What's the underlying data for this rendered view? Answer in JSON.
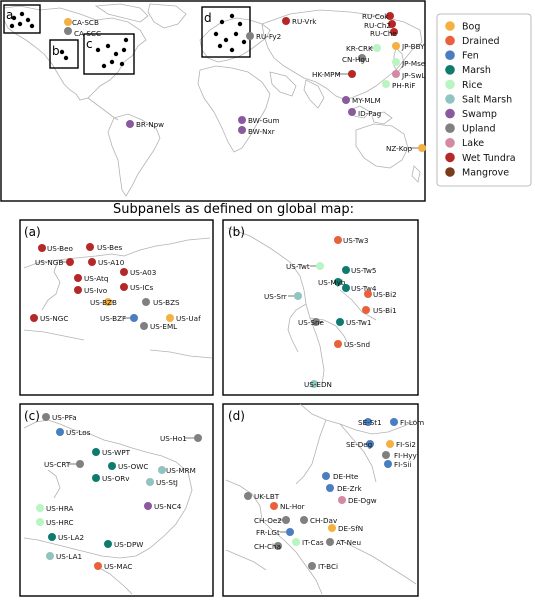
{
  "subtitle": "Subpanels as defined on global map:",
  "legend": [
    {
      "name": "Bog",
      "color": "#f5b041"
    },
    {
      "name": "Drained",
      "color": "#e8613c"
    },
    {
      "name": "Fen",
      "color": "#4a7ec0"
    },
    {
      "name": "Marsh",
      "color": "#0f7b6f"
    },
    {
      "name": "Rice",
      "color": "#b8f5c0"
    },
    {
      "name": "Salt Marsh",
      "color": "#8fc4c0"
    },
    {
      "name": "Swamp",
      "color": "#8a5a9e"
    },
    {
      "name": "Upland",
      "color": "#808080"
    },
    {
      "name": "Lake",
      "color": "#d48aa0"
    },
    {
      "name": "Wet Tundra",
      "color": "#b52828"
    },
    {
      "name": "Mangrove",
      "color": "#7a3b1b"
    }
  ],
  "global_boxes": [
    {
      "label": "a"
    },
    {
      "label": "b"
    },
    {
      "label": "c"
    },
    {
      "label": "d"
    }
  ],
  "global_sites": [
    {
      "label": "CA-SCB",
      "type": "Bog"
    },
    {
      "label": "CA-SCC",
      "type": "Upland"
    },
    {
      "label": "RU-Vrk",
      "type": "Wet Tundra"
    },
    {
      "label": "RU-Fy2",
      "type": "Upland"
    },
    {
      "label": "RU-Cok",
      "type": "Wet Tundra"
    },
    {
      "label": "RU-Ch2",
      "type": "Wet Tundra"
    },
    {
      "label": "RU-Che",
      "type": "Wet Tundra"
    },
    {
      "label": "KR-CRK",
      "type": "Rice"
    },
    {
      "label": "JP-BBY",
      "type": "Bog"
    },
    {
      "label": "CN-Hgu",
      "type": "Upland"
    },
    {
      "label": "JP-Mse",
      "type": "Rice"
    },
    {
      "label": "HK-MPM",
      "type": "Wet Tundra"
    },
    {
      "label": "JP-SwL",
      "type": "Lake"
    },
    {
      "label": "PH-RiF",
      "type": "Rice"
    },
    {
      "label": "MY-MLM",
      "type": "Swamp"
    },
    {
      "label": "ID-Pag",
      "type": "Swamp"
    },
    {
      "label": "BR-Npw",
      "type": "Swamp"
    },
    {
      "label": "BW-Gum",
      "type": "Swamp"
    },
    {
      "label": "BW-Nxr",
      "type": "Swamp"
    },
    {
      "label": "NZ-Kop",
      "type": "Bog"
    }
  ],
  "panels": [
    {
      "label": "(a)",
      "sites": [
        {
          "label": "US-Beo",
          "type": "Wet Tundra"
        },
        {
          "label": "US-Bes",
          "type": "Wet Tundra"
        },
        {
          "label": "US-NGB",
          "type": "Wet Tundra"
        },
        {
          "label": "US-A10",
          "type": "Wet Tundra"
        },
        {
          "label": "US-Atq",
          "type": "Wet Tundra"
        },
        {
          "label": "US-A03",
          "type": "Wet Tundra"
        },
        {
          "label": "US-Ivo",
          "type": "Wet Tundra"
        },
        {
          "label": "US-ICs",
          "type": "Wet Tundra"
        },
        {
          "label": "US-BZB",
          "type": "Bog"
        },
        {
          "label": "US-BZS",
          "type": "Upland"
        },
        {
          "label": "US-NGC",
          "type": "Wet Tundra"
        },
        {
          "label": "US-BZF",
          "type": "Fen"
        },
        {
          "label": "US-Uaf",
          "type": "Bog"
        },
        {
          "label": "US-EML",
          "type": "Upland"
        }
      ]
    },
    {
      "label": "(b)",
      "sites": [
        {
          "label": "US-Tw3",
          "type": "Drained"
        },
        {
          "label": "US-Twt",
          "type": "Rice"
        },
        {
          "label": "US-Tw5",
          "type": "Marsh"
        },
        {
          "label": "US-Myb",
          "type": "Marsh"
        },
        {
          "label": "US-Tw4",
          "type": "Marsh"
        },
        {
          "label": "US-Srr",
          "type": "Salt Marsh"
        },
        {
          "label": "US-Bi2",
          "type": "Drained"
        },
        {
          "label": "US-Bi1",
          "type": "Drained"
        },
        {
          "label": "US-Sne",
          "type": "Upland"
        },
        {
          "label": "US-Tw1",
          "type": "Marsh"
        },
        {
          "label": "US-Snd",
          "type": "Drained"
        },
        {
          "label": "US-EDN",
          "type": "Salt Marsh"
        }
      ]
    },
    {
      "label": "(c)",
      "sites": [
        {
          "label": "US-PFa",
          "type": "Upland"
        },
        {
          "label": "US-Los",
          "type": "Fen"
        },
        {
          "label": "US-Ho1",
          "type": "Upland"
        },
        {
          "label": "US-WPT",
          "type": "Marsh"
        },
        {
          "label": "US-CRT",
          "type": "Upland"
        },
        {
          "label": "US-OWC",
          "type": "Marsh"
        },
        {
          "label": "US-MRM",
          "type": "Salt Marsh"
        },
        {
          "label": "US-ORv",
          "type": "Marsh"
        },
        {
          "label": "US-StJ",
          "type": "Salt Marsh"
        },
        {
          "label": "US-NC4",
          "type": "Swamp"
        },
        {
          "label": "US-HRA",
          "type": "Rice"
        },
        {
          "label": "US-HRC",
          "type": "Rice"
        },
        {
          "label": "US-LA2",
          "type": "Marsh"
        },
        {
          "label": "US-DPW",
          "type": "Marsh"
        },
        {
          "label": "US-LA1",
          "type": "Salt Marsh"
        },
        {
          "label": "US-MAC",
          "type": "Drained"
        }
      ]
    },
    {
      "label": "(d)",
      "sites": [
        {
          "label": "SE-St1",
          "type": "Fen"
        },
        {
          "label": "FI-Lom",
          "type": "Fen"
        },
        {
          "label": "SE-Deg",
          "type": "Fen"
        },
        {
          "label": "FI-Si2",
          "type": "Bog"
        },
        {
          "label": "FI-Hyy",
          "type": "Upland"
        },
        {
          "label": "FI-Sii",
          "type": "Fen"
        },
        {
          "label": "DE-Hte",
          "type": "Fen"
        },
        {
          "label": "DE-Zrk",
          "type": "Fen"
        },
        {
          "label": "UK-LBT",
          "type": "Upland"
        },
        {
          "label": "DE-Dgw",
          "type": "Lake"
        },
        {
          "label": "NL-Hor",
          "type": "Drained"
        },
        {
          "label": "CH-Dav",
          "type": "Upland"
        },
        {
          "label": "CH-Oe2",
          "type": "Upland"
        },
        {
          "label": "DE-SfN",
          "type": "Bog"
        },
        {
          "label": "FR-LGt",
          "type": "Fen"
        },
        {
          "label": "IT-Cas",
          "type": "Rice"
        },
        {
          "label": "AT-Neu",
          "type": "Upland"
        },
        {
          "label": "CH-Cha",
          "type": "Upland"
        },
        {
          "label": "IT-BCi",
          "type": "Upland"
        }
      ]
    }
  ]
}
